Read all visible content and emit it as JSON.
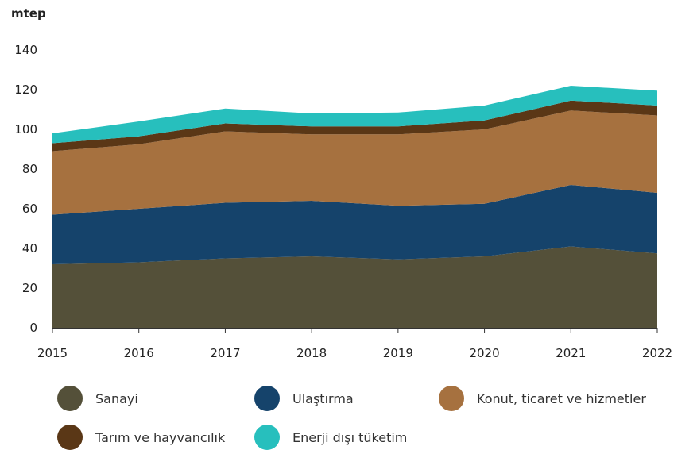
{
  "chart_data": {
    "type": "area",
    "stacked": true,
    "ylabel": "mtep",
    "x": [
      2015,
      2016,
      2017,
      2018,
      2019,
      2020,
      2021,
      2022
    ],
    "ylim": [
      0,
      140
    ],
    "yticks": [
      0,
      20,
      40,
      60,
      80,
      100,
      120,
      140
    ],
    "grid": false,
    "legend_position": "bottom",
    "series": [
      {
        "name": "Sanayi",
        "color": "#545039",
        "values": [
          32,
          33,
          35,
          36,
          34.5,
          36,
          41,
          37.5
        ]
      },
      {
        "name": "Ulaştırma",
        "color": "#15436b",
        "values": [
          25,
          27,
          28,
          28,
          27,
          26.5,
          31,
          30.5
        ]
      },
      {
        "name": "Konut, ticaret ve hizmetler",
        "color": "#a6713f",
        "values": [
          32,
          32.5,
          36,
          33.5,
          36,
          37.5,
          37.5,
          39
        ]
      },
      {
        "name": "Tarım ve hayvancılık",
        "color": "#5a3716",
        "values": [
          4,
          4,
          4,
          4,
          4,
          4.5,
          5,
          5
        ]
      },
      {
        "name": "Enerji dışı tüketim",
        "color": "#27bfbd",
        "values": [
          5,
          7.5,
          7.5,
          6.5,
          7,
          7.5,
          7.5,
          7.5
        ]
      }
    ]
  }
}
